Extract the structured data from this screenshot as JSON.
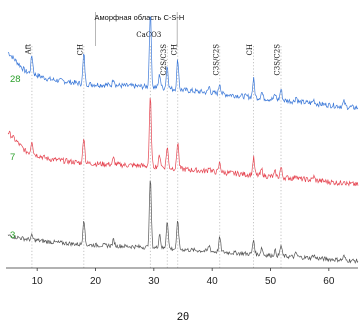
{
  "chart_data": {
    "type": "line",
    "xlabel": "2θ",
    "ylabel": "",
    "xlim": [
      5,
      65
    ],
    "x_ticks": [
      10,
      20,
      30,
      40,
      50,
      60
    ],
    "grid": false,
    "amorphous_region": {
      "label": "Аморфная область C-S-H",
      "from": 20,
      "to": 34
    },
    "phase_markers": [
      {
        "label": "Aft",
        "x": 9.1
      },
      {
        "label": "CH",
        "x": 18.0
      },
      {
        "label": "CaCO3",
        "x": 29.4
      },
      {
        "label": "C2S/C3S",
        "x": 32.3
      },
      {
        "label": "CH",
        "x": 34.1
      },
      {
        "label": "C3S/C2S",
        "x": 41.3
      },
      {
        "label": "CH",
        "x": 47.1
      },
      {
        "label": "C3S/C2S",
        "x": 51.8
      }
    ],
    "series": [
      {
        "name": "28",
        "color": "#3b78d8",
        "label_color": "#2ca02c",
        "baseline": [
          [
            5,
            0.93
          ],
          [
            8,
            0.61
          ],
          [
            12,
            0.48
          ],
          [
            18,
            0.4
          ],
          [
            25,
            0.37
          ],
          [
            30,
            0.35
          ],
          [
            35,
            0.3
          ],
          [
            45,
            0.2
          ],
          [
            55,
            0.1
          ],
          [
            65,
            0.0
          ]
        ],
        "peaks": [
          [
            9.1,
            0.3
          ],
          [
            18.0,
            0.5
          ],
          [
            23.1,
            0.12
          ],
          [
            29.4,
            1.25
          ],
          [
            31.0,
            0.22
          ],
          [
            32.3,
            0.38
          ],
          [
            34.1,
            0.5
          ],
          [
            39.5,
            0.1
          ],
          [
            41.3,
            0.18
          ],
          [
            47.1,
            0.3
          ],
          [
            48.5,
            0.1
          ],
          [
            50.8,
            0.08
          ],
          [
            51.8,
            0.18
          ],
          [
            54.4,
            0.08
          ],
          [
            57.4,
            0.06
          ],
          [
            62.6,
            0.08
          ]
        ]
      },
      {
        "name": "7",
        "color": "#e54450",
        "label_color": "#2ca02c",
        "baseline": [
          [
            5,
            0.9
          ],
          [
            8,
            0.58
          ],
          [
            12,
            0.45
          ],
          [
            18,
            0.38
          ],
          [
            25,
            0.35
          ],
          [
            30,
            0.33
          ],
          [
            35,
            0.28
          ],
          [
            45,
            0.2
          ],
          [
            55,
            0.12
          ],
          [
            65,
            0.02
          ]
        ],
        "peaks": [
          [
            9.1,
            0.22
          ],
          [
            18.0,
            0.45
          ],
          [
            23.1,
            0.1
          ],
          [
            29.4,
            1.15
          ],
          [
            31.0,
            0.2
          ],
          [
            32.3,
            0.35
          ],
          [
            34.1,
            0.45
          ],
          [
            39.5,
            0.08
          ],
          [
            41.3,
            0.16
          ],
          [
            47.1,
            0.28
          ],
          [
            48.5,
            0.1
          ],
          [
            50.8,
            0.08
          ],
          [
            51.8,
            0.16
          ],
          [
            54.4,
            0.07
          ],
          [
            57.4,
            0.06
          ],
          [
            62.6,
            0.06
          ]
        ]
      },
      {
        "name": "3",
        "color": "#555555",
        "label_color": "#2ca02c",
        "baseline": [
          [
            5,
            0.55
          ],
          [
            8,
            0.48
          ],
          [
            12,
            0.42
          ],
          [
            18,
            0.36
          ],
          [
            25,
            0.33
          ],
          [
            30,
            0.3
          ],
          [
            35,
            0.26
          ],
          [
            45,
            0.18
          ],
          [
            55,
            0.1
          ],
          [
            65,
            0.02
          ]
        ],
        "peaks": [
          [
            9.1,
            0.08
          ],
          [
            18.0,
            0.55
          ],
          [
            23.1,
            0.12
          ],
          [
            29.4,
            1.45
          ],
          [
            31.0,
            0.3
          ],
          [
            32.3,
            0.6
          ],
          [
            34.1,
            0.6
          ],
          [
            39.5,
            0.12
          ],
          [
            41.3,
            0.3
          ],
          [
            47.1,
            0.3
          ],
          [
            48.5,
            0.15
          ],
          [
            50.8,
            0.1
          ],
          [
            51.8,
            0.22
          ],
          [
            54.4,
            0.08
          ],
          [
            57.4,
            0.07
          ],
          [
            62.6,
            0.08
          ]
        ]
      }
    ]
  }
}
